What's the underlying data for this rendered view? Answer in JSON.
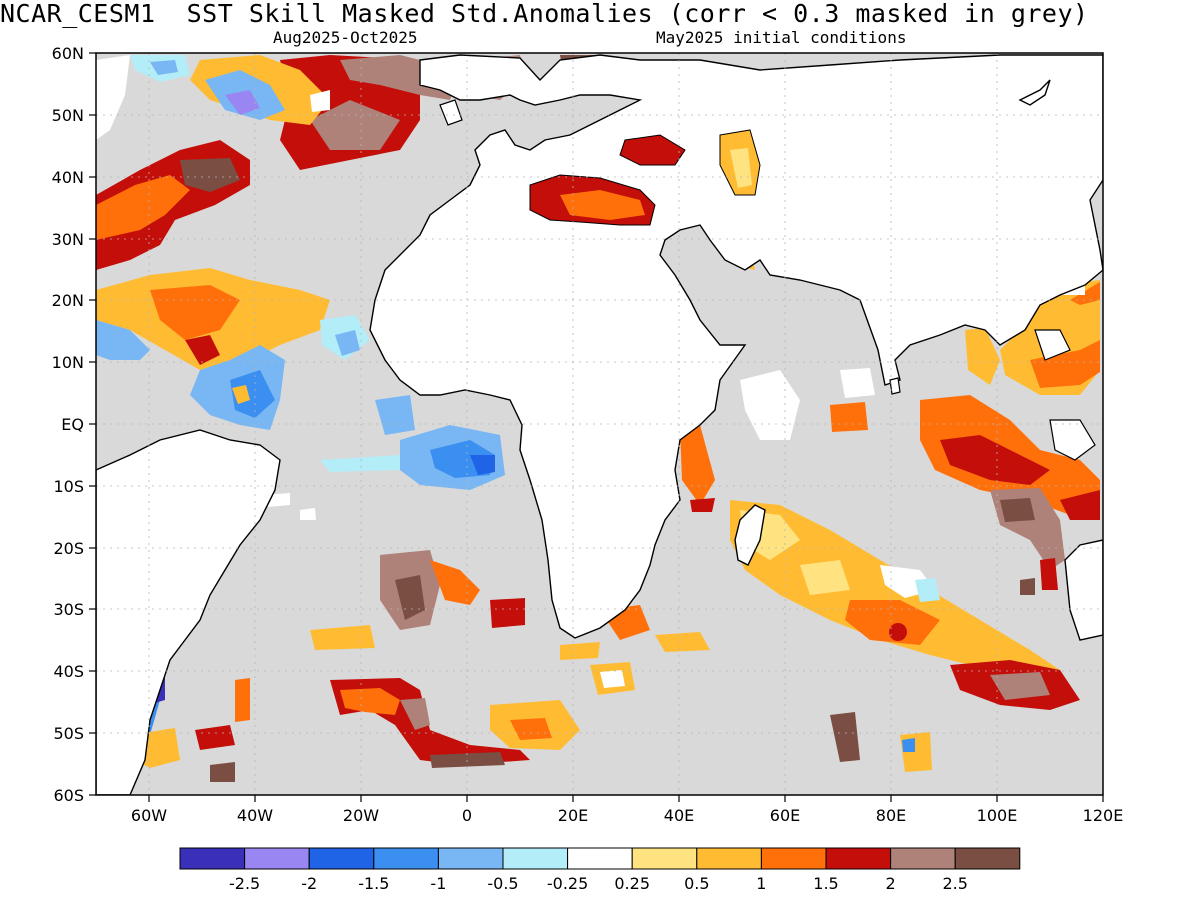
{
  "title": "NCAR_CESM1  SST Skill Masked Std.Anomalies (corr < 0.3 masked in grey)",
  "subtitle_left": "Aug2025-Oct2025",
  "subtitle_right": "May2025 initial conditions",
  "axes": {
    "lat_labels": [
      "60N",
      "50N",
      "40N",
      "30N",
      "20N",
      "10N",
      "EQ",
      "10S",
      "20S",
      "30S",
      "40S",
      "50S",
      "60S"
    ],
    "lon_labels": [
      "60W",
      "40W",
      "20W",
      "0",
      "20E",
      "40E",
      "60E",
      "80E",
      "100E",
      "120E"
    ]
  },
  "colorbar": {
    "labels": [
      "-2.5",
      "-2",
      "-1.5",
      "-1",
      "-0.5",
      "-0.25",
      "0.25",
      "0.5",
      "1",
      "1.5",
      "2",
      "2.5"
    ],
    "colors": [
      "#3a2fb8",
      "#9a86f2",
      "#1f63e6",
      "#3b8ff0",
      "#78b6f4",
      "#b3edf7",
      "#ffffff",
      "#ffe381",
      "#ffbc33",
      "#ff6f0a",
      "#c40e0a",
      "#ae8179",
      "#7a4e42"
    ]
  },
  "colors": {
    "mask_grey": "#d9d9d9",
    "land": "#ffffff",
    "coast": "#000000",
    "grid": "#b5b5b5"
  }
}
